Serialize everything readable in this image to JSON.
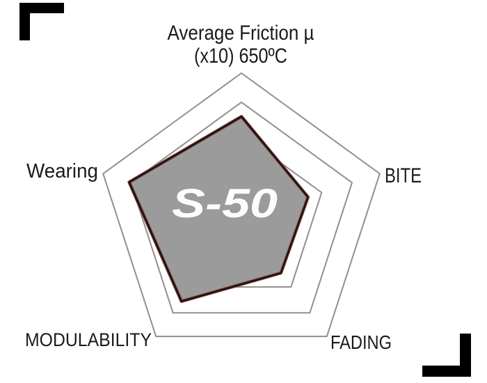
{
  "page": {
    "background": "#ffffff"
  },
  "title": {
    "line1": "Average Friction µ",
    "line2": "(x10) 650ºC"
  },
  "labels": {
    "wearing": "Wearing",
    "bite": "BITE",
    "fading": "FADING",
    "modulability": "MODULABILITY"
  },
  "logo": {
    "text": "S-50"
  },
  "colors": {
    "grid_line": "#8f8f8f",
    "data_fill": "#9b9b9b",
    "data_border": "#141414",
    "data_border_accent": "#7e3b33",
    "label_text": "#1a1a1a",
    "logo_text": "#fcfcfc",
    "crop_mark": "#000000"
  },
  "chart_data": {
    "type": "radar",
    "axes": [
      "Average Friction µ (x10) 650ºC",
      "BITE",
      "FADING",
      "MODULABILITY",
      "Wearing"
    ],
    "scale_max": 5,
    "ring_levels": [
      2.9,
      4.0,
      5.0
    ],
    "series": [
      {
        "name": "S-50",
        "values": [
          3.5,
          2.4,
          2.3,
          3.5,
          4.05
        ]
      }
    ],
    "grid": true,
    "legend": false,
    "orientation": "first axis at top, remaining axes clockwise"
  }
}
